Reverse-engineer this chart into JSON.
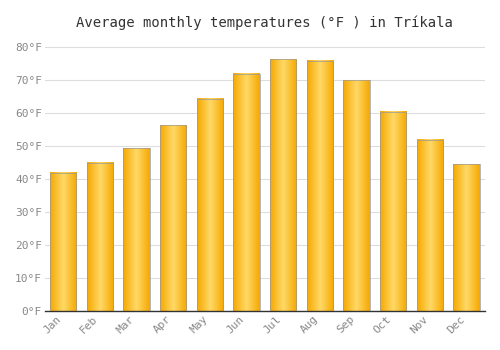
{
  "title": "Average monthly temperatures (°F ) in Tríkala",
  "months": [
    "Jan",
    "Feb",
    "Mar",
    "Apr",
    "May",
    "Jun",
    "Jul",
    "Aug",
    "Sep",
    "Oct",
    "Nov",
    "Dec"
  ],
  "values": [
    42,
    45,
    49.5,
    56.5,
    64.5,
    72,
    76.5,
    76,
    70,
    60.5,
    52,
    44.5
  ],
  "bar_color_main": "#F5A800",
  "bar_color_light": "#FFD966",
  "background_color": "#FFFFFF",
  "grid_color": "#DDDDDD",
  "spine_color": "#999999",
  "ylim": [
    0,
    83
  ],
  "yticks": [
    0,
    10,
    20,
    30,
    40,
    50,
    60,
    70,
    80
  ],
  "ytick_labels": [
    "0°F",
    "10°F",
    "20°F",
    "30°F",
    "40°F",
    "50°F",
    "60°F",
    "70°F",
    "80°F"
  ],
  "tick_color": "#888888",
  "title_fontsize": 10,
  "tick_fontsize": 8
}
